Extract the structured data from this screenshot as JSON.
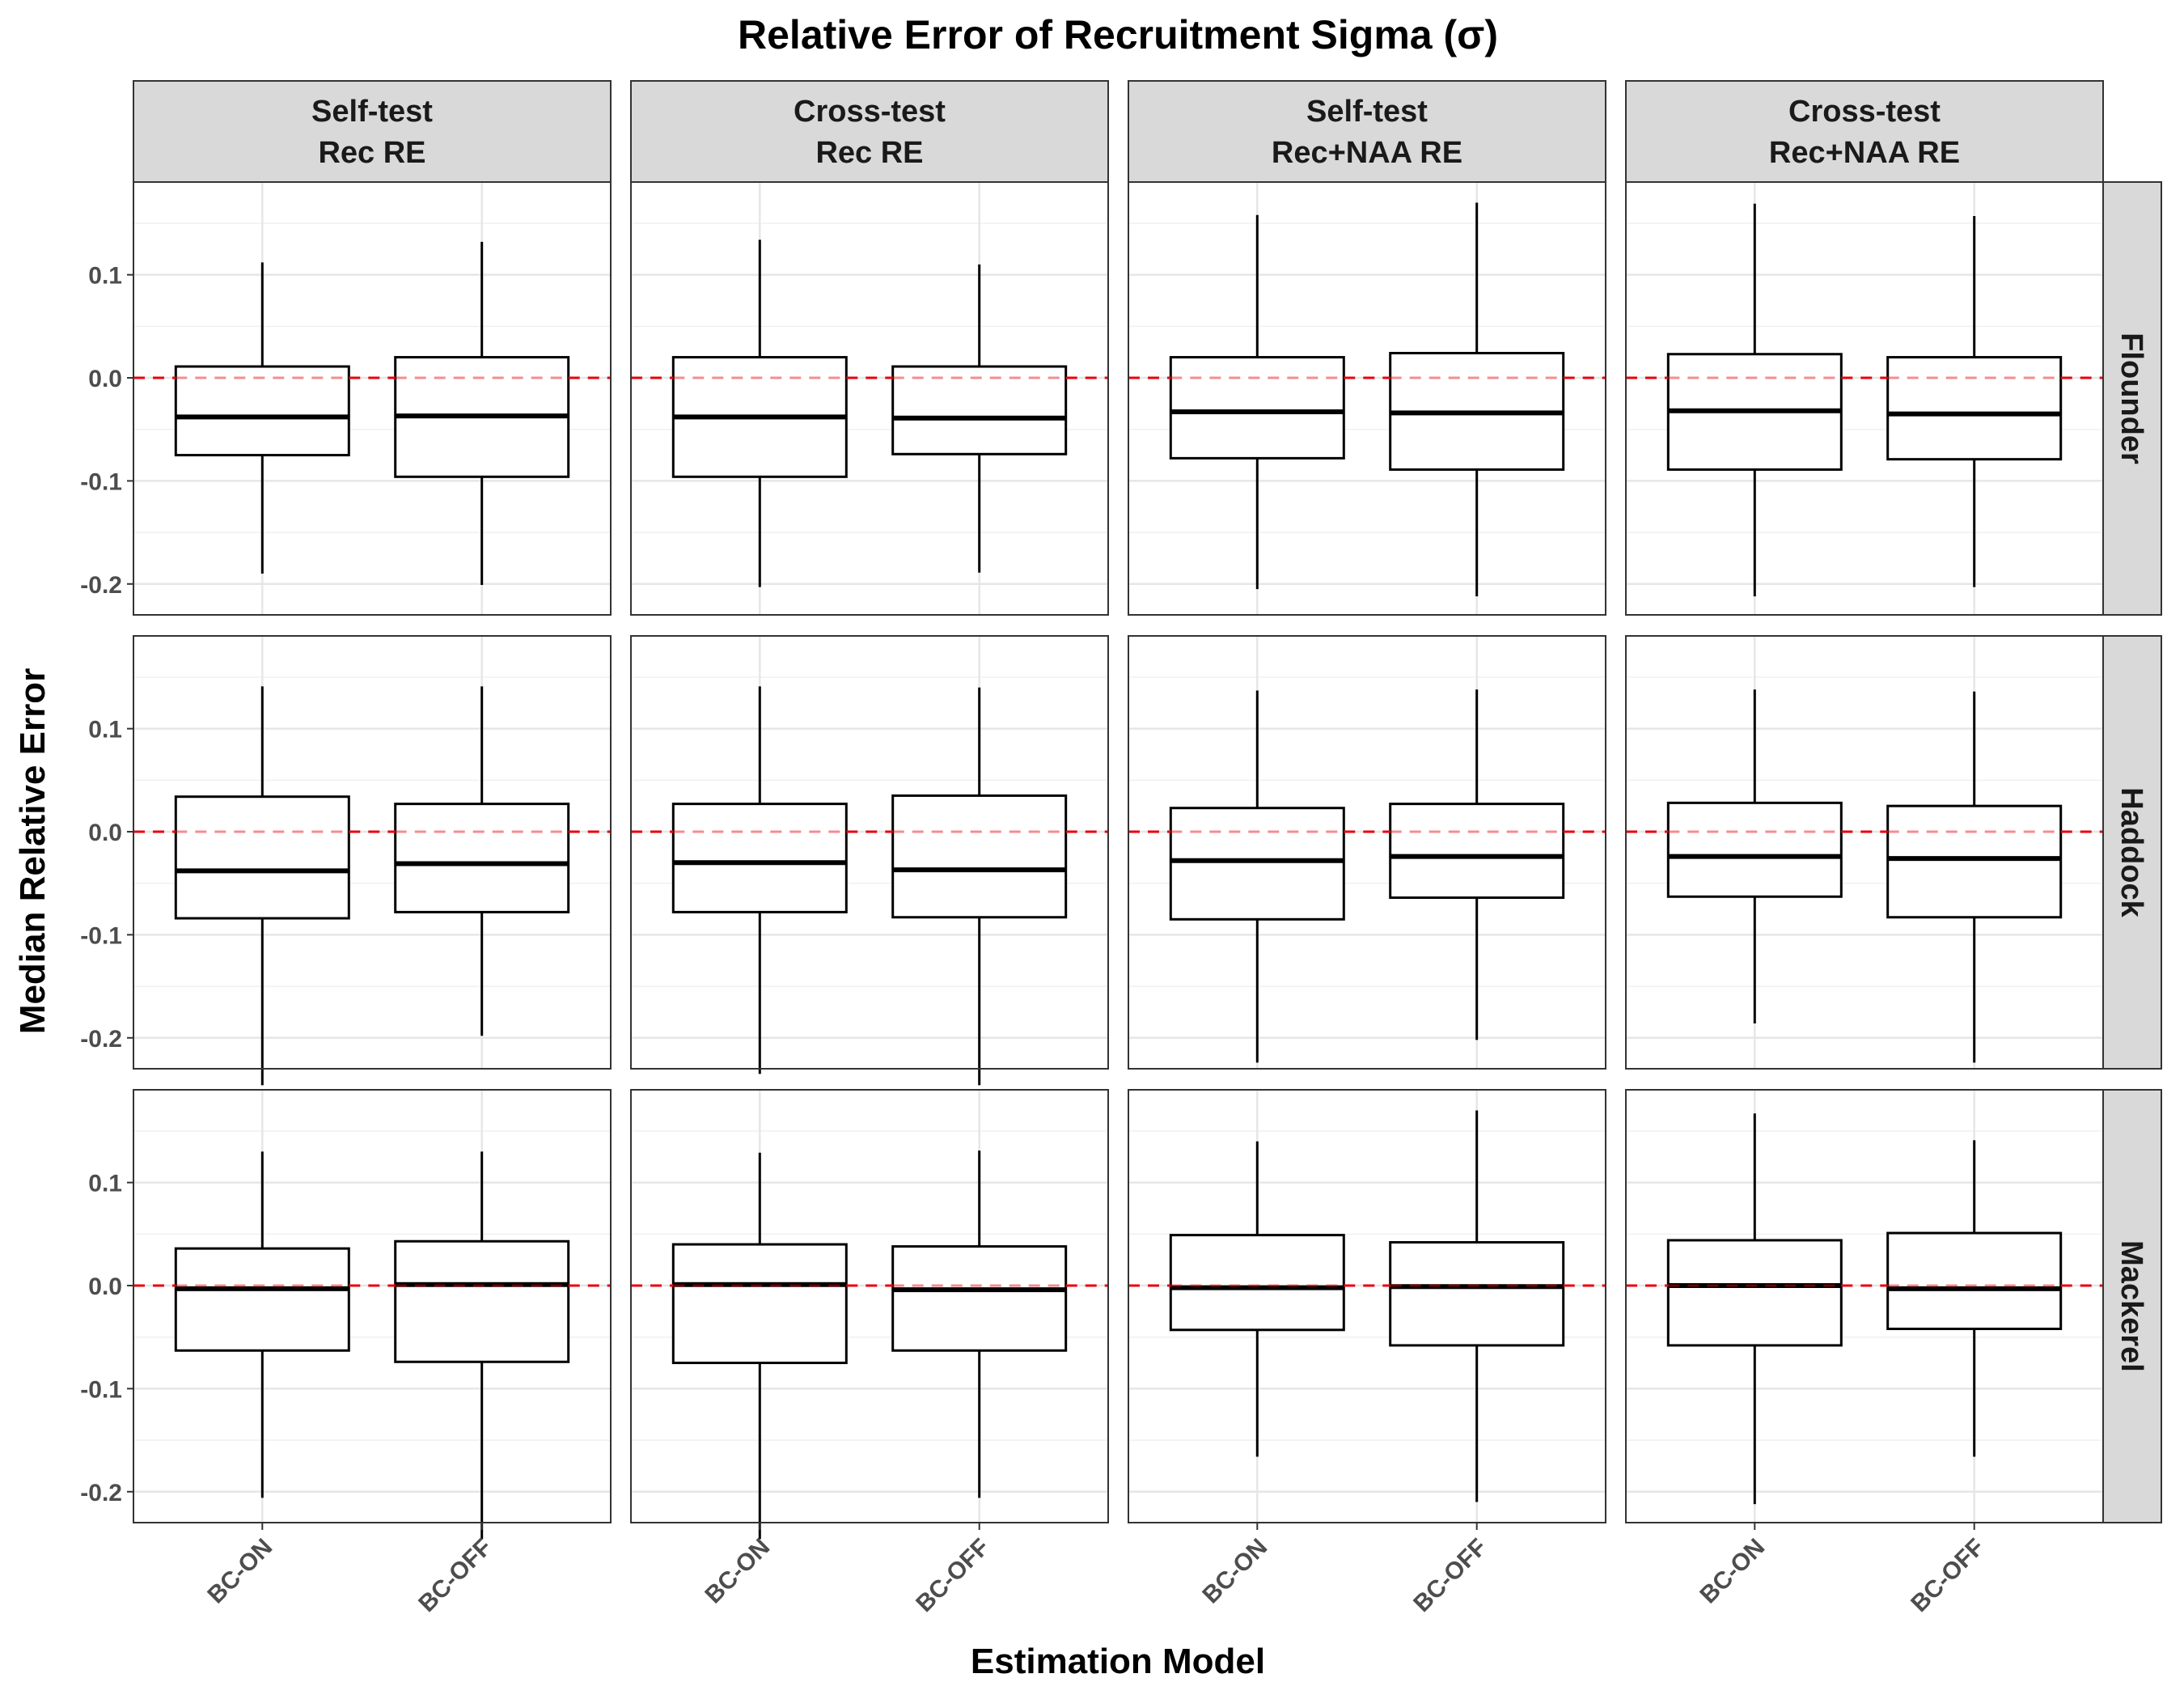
{
  "chart_data": {
    "type": "boxplot",
    "title": "Relative Error of Recruitment Sigma (σ)",
    "xlabel": "Estimation Model",
    "ylabel": "Median Relative Error",
    "categories": [
      "BC-ON",
      "BC-OFF"
    ],
    "columns": [
      {
        "line1": "Self-test",
        "line2": "Rec RE"
      },
      {
        "line1": "Cross-test",
        "line2": "Rec RE"
      },
      {
        "line1": "Self-test",
        "line2": "Rec+NAA RE"
      },
      {
        "line1": "Cross-test",
        "line2": "Rec+NAA RE"
      }
    ],
    "rows": [
      "Flounder",
      "Haddock",
      "Mackerel"
    ],
    "ylim": [
      -0.23,
      0.19
    ],
    "yticks": [
      -0.2,
      -0.1,
      0.0,
      0.1
    ],
    "ytick_labels": [
      "-0.2",
      "-0.1",
      "0.0",
      "0.1"
    ],
    "reference_line": 0,
    "reference_color": "#e8000b",
    "grid": true,
    "panels": [
      [
        [
          {
            "min": -0.19,
            "q1": -0.075,
            "median": -0.038,
            "q3": 0.011,
            "max": 0.112
          },
          {
            "min": -0.201,
            "q1": -0.096,
            "median": -0.037,
            "q3": 0.02,
            "max": 0.132
          }
        ],
        [
          {
            "min": -0.203,
            "q1": -0.096,
            "median": -0.038,
            "q3": 0.02,
            "max": 0.134
          },
          {
            "min": -0.189,
            "q1": -0.074,
            "median": -0.039,
            "q3": 0.011,
            "max": 0.11
          }
        ],
        [
          {
            "min": -0.205,
            "q1": -0.078,
            "median": -0.033,
            "q3": 0.02,
            "max": 0.158
          },
          {
            "min": -0.212,
            "q1": -0.089,
            "median": -0.034,
            "q3": 0.024,
            "max": 0.17
          }
        ],
        [
          {
            "min": -0.212,
            "q1": -0.089,
            "median": -0.032,
            "q3": 0.023,
            "max": 0.169
          },
          {
            "min": -0.203,
            "q1": -0.079,
            "median": -0.035,
            "q3": 0.02,
            "max": 0.157
          }
        ]
      ],
      [
        [
          {
            "min": -0.246,
            "q1": -0.084,
            "median": -0.038,
            "q3": 0.034,
            "max": 0.141
          },
          {
            "min": -0.198,
            "q1": -0.078,
            "median": -0.031,
            "q3": 0.027,
            "max": 0.141
          }
        ],
        [
          {
            "min": -0.235,
            "q1": -0.078,
            "median": -0.03,
            "q3": 0.027,
            "max": 0.141
          },
          {
            "min": -0.246,
            "q1": -0.083,
            "median": -0.037,
            "q3": 0.035,
            "max": 0.14
          }
        ],
        [
          {
            "min": -0.224,
            "q1": -0.085,
            "median": -0.028,
            "q3": 0.023,
            "max": 0.137
          },
          {
            "min": -0.202,
            "q1": -0.064,
            "median": -0.024,
            "q3": 0.027,
            "max": 0.138
          }
        ],
        [
          {
            "min": -0.186,
            "q1": -0.063,
            "median": -0.024,
            "q3": 0.028,
            "max": 0.138
          },
          {
            "min": -0.224,
            "q1": -0.083,
            "median": -0.026,
            "q3": 0.025,
            "max": 0.136
          }
        ]
      ],
      [
        [
          {
            "min": -0.206,
            "q1": -0.063,
            "median": -0.003,
            "q3": 0.036,
            "max": 0.13
          },
          {
            "min": -0.246,
            "q1": -0.074,
            "median": 0.001,
            "q3": 0.043,
            "max": 0.13
          }
        ],
        [
          {
            "min": -0.246,
            "q1": -0.075,
            "median": 0.001,
            "q3": 0.04,
            "max": 0.129
          },
          {
            "min": -0.206,
            "q1": -0.063,
            "median": -0.004,
            "q3": 0.038,
            "max": 0.131
          }
        ],
        [
          {
            "min": -0.166,
            "q1": -0.043,
            "median": -0.002,
            "q3": 0.049,
            "max": 0.14
          },
          {
            "min": -0.21,
            "q1": -0.058,
            "median": -0.001,
            "q3": 0.042,
            "max": 0.17
          }
        ],
        [
          {
            "min": -0.212,
            "q1": -0.058,
            "median": 0.0,
            "q3": 0.044,
            "max": 0.167
          },
          {
            "min": -0.166,
            "q1": -0.042,
            "median": -0.003,
            "q3": 0.051,
            "max": 0.141
          }
        ]
      ]
    ]
  }
}
